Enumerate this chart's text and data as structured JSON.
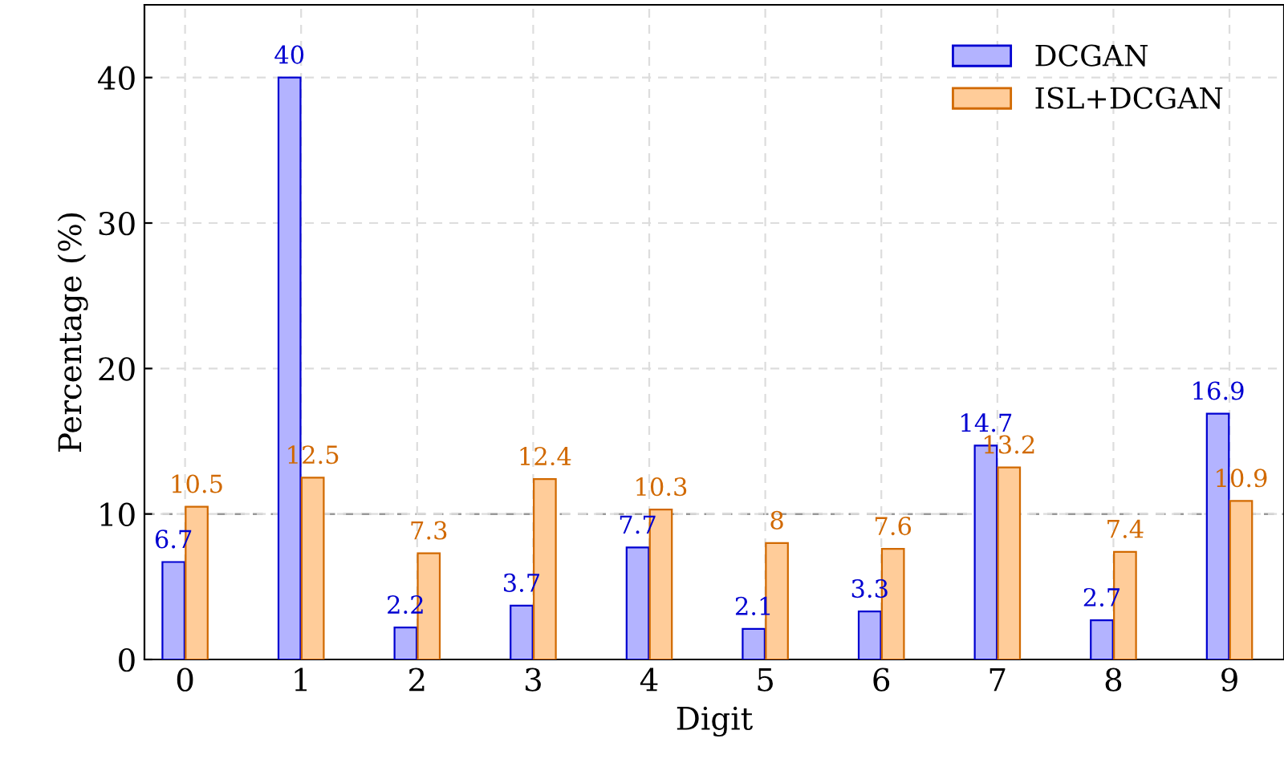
{
  "chart_data": {
    "type": "bar",
    "xlabel": "Digit",
    "ylabel": "Percentage (%)",
    "categories": [
      "0",
      "1",
      "2",
      "3",
      "4",
      "5",
      "6",
      "7",
      "8",
      "9"
    ],
    "series": [
      {
        "name": "DCGAN",
        "color": "#b3b3ff",
        "values": [
          6.7,
          40,
          2.2,
          3.7,
          7.7,
          2.1,
          3.3,
          14.7,
          2.7,
          16.9
        ]
      },
      {
        "name": "ISL+DCGAN",
        "color": "#ffcc99",
        "values": [
          10.5,
          12.5,
          7.3,
          12.4,
          10.3,
          8,
          7.6,
          13.2,
          7.4,
          10.9
        ]
      }
    ],
    "ylim": [
      0,
      45
    ],
    "yticks": [
      0,
      10,
      20,
      30,
      40
    ],
    "ref_lines": [
      {
        "axis": "y",
        "value": 10,
        "color": "#999999",
        "line_style": "dashed"
      }
    ],
    "grid": true,
    "legend": "top right",
    "data_labels": true
  }
}
